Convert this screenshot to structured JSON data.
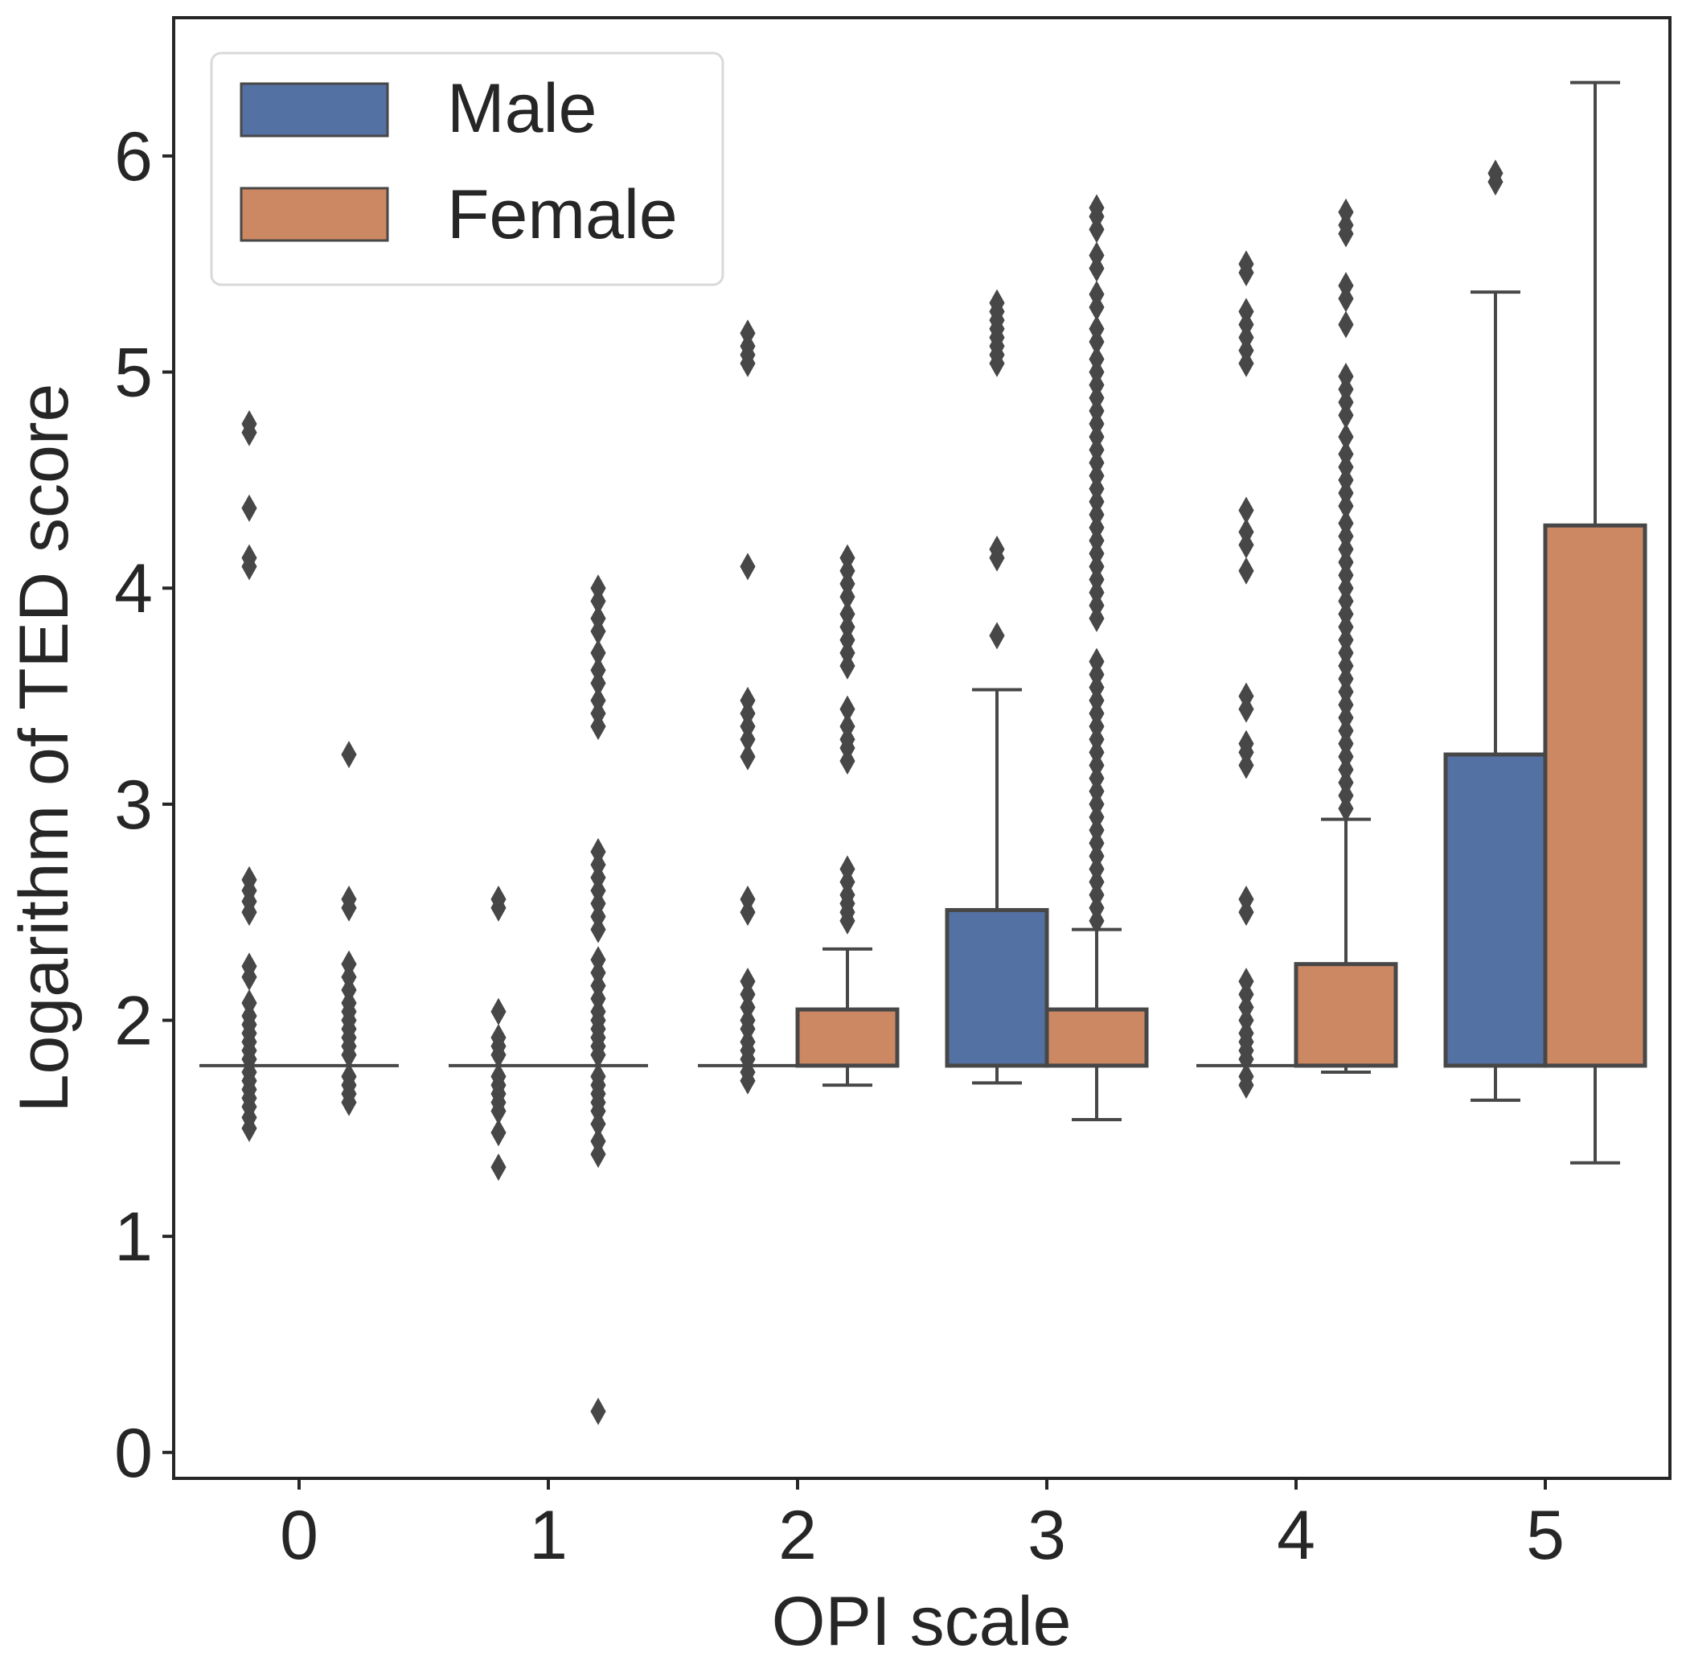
{
  "chart_data": {
    "type": "boxplot",
    "title": "",
    "xlabel": "OPI scale",
    "ylabel": "Logarithm of TED score",
    "categories": [
      "0",
      "1",
      "2",
      "3",
      "4",
      "5"
    ],
    "ylim": [
      -0.12,
      6.64
    ],
    "yticks": [
      "0",
      "1",
      "2",
      "3",
      "4",
      "5",
      "6"
    ],
    "grid": false,
    "legend_position": "top-left",
    "colors": {
      "Male": "#5471a3",
      "Female": "#cc8862",
      "outline": "#474747"
    },
    "series": [
      {
        "name": "Male",
        "boxes": [
          {
            "category": "0",
            "whislo": 1.79,
            "q1": 1.79,
            "median": 1.79,
            "q3": 1.79,
            "whishi": 1.79,
            "fliers": [
              1.5,
              1.55,
              1.6,
              1.64,
              1.68,
              1.72,
              1.76,
              1.82,
              1.86,
              1.9,
              1.94,
              1.98,
              2.02,
              2.08,
              2.2,
              2.25,
              2.5,
              2.55,
              2.6,
              2.65,
              4.1,
              4.14,
              4.37,
              4.72,
              4.76
            ]
          },
          {
            "category": "1",
            "whislo": 1.79,
            "q1": 1.79,
            "median": 1.79,
            "q3": 1.79,
            "whishi": 1.79,
            "fliers": [
              1.32,
              1.48,
              1.58,
              1.62,
              1.66,
              1.7,
              1.74,
              1.84,
              1.88,
              1.92,
              2.04,
              2.52,
              2.56
            ]
          },
          {
            "category": "2",
            "whislo": 1.79,
            "q1": 1.79,
            "median": 1.79,
            "q3": 1.79,
            "whishi": 1.79,
            "fliers": [
              1.72,
              1.76,
              1.82,
              1.86,
              1.9,
              1.96,
              2.0,
              2.06,
              2.12,
              2.18,
              2.5,
              2.56,
              3.22,
              3.3,
              3.36,
              3.42,
              3.48,
              4.1,
              5.04,
              5.08,
              5.12,
              5.18
            ]
          },
          {
            "category": "3",
            "whislo": 1.71,
            "q1": 1.79,
            "median": 1.79,
            "q3": 2.51,
            "whishi": 3.53,
            "fliers": [
              3.78,
              4.14,
              4.18,
              5.04,
              5.08,
              5.12,
              5.16,
              5.2,
              5.24,
              5.28,
              5.32
            ]
          },
          {
            "category": "4",
            "whislo": 1.79,
            "q1": 1.79,
            "median": 1.79,
            "q3": 1.79,
            "whishi": 1.79,
            "fliers": [
              1.7,
              1.74,
              1.82,
              1.86,
              1.9,
              1.94,
              2.0,
              2.06,
              2.12,
              2.18,
              2.5,
              2.56,
              3.18,
              3.24,
              3.28,
              3.44,
              3.5,
              4.08,
              4.2,
              4.26,
              4.36,
              5.04,
              5.1,
              5.16,
              5.22,
              5.28,
              5.46,
              5.5
            ]
          },
          {
            "category": "5",
            "whislo": 1.63,
            "q1": 1.79,
            "median": 1.79,
            "q3": 3.23,
            "whishi": 5.37,
            "fliers": [
              5.88,
              5.92
            ]
          }
        ]
      },
      {
        "name": "Female",
        "boxes": [
          {
            "category": "0",
            "whislo": 1.79,
            "q1": 1.79,
            "median": 1.79,
            "q3": 1.79,
            "whishi": 1.79,
            "fliers": [
              1.62,
              1.66,
              1.7,
              1.74,
              1.84,
              1.88,
              1.92,
              1.96,
              2.0,
              2.04,
              2.08,
              2.14,
              2.2,
              2.26,
              2.52,
              2.56,
              3.23
            ]
          },
          {
            "category": "1",
            "whislo": 1.79,
            "q1": 1.79,
            "median": 1.79,
            "q3": 1.79,
            "whishi": 1.79,
            "fliers": [
              0.19,
              1.38,
              1.44,
              1.52,
              1.58,
              1.62,
              1.66,
              1.7,
              1.74,
              1.84,
              1.88,
              1.92,
              1.96,
              2.0,
              2.04,
              2.1,
              2.16,
              2.22,
              2.28,
              2.42,
              2.48,
              2.54,
              2.6,
              2.66,
              2.72,
              2.78,
              3.36,
              3.42,
              3.48,
              3.56,
              3.62,
              3.7,
              3.8,
              3.86,
              3.94,
              4.0
            ]
          },
          {
            "category": "2",
            "whislo": 1.7,
            "q1": 1.79,
            "median": 1.79,
            "q3": 2.05,
            "whishi": 2.33,
            "fliers": [
              2.46,
              2.5,
              2.54,
              2.58,
              2.64,
              2.7,
              3.2,
              3.26,
              3.3,
              3.36,
              3.44,
              3.64,
              3.7,
              3.76,
              3.82,
              3.88,
              3.96,
              4.02,
              4.08,
              4.14
            ]
          },
          {
            "category": "3",
            "whislo": 1.54,
            "q1": 1.79,
            "median": 1.79,
            "q3": 2.05,
            "whishi": 2.42,
            "fliers": [
              2.46,
              2.52,
              2.58,
              2.64,
              2.7,
              2.76,
              2.82,
              2.88,
              2.94,
              3.0,
              3.06,
              3.12,
              3.18,
              3.24,
              3.3,
              3.36,
              3.42,
              3.48,
              3.54,
              3.6,
              3.66,
              3.86,
              3.92,
              3.98,
              4.04,
              4.1,
              4.16,
              4.22,
              4.28,
              4.34,
              4.4,
              4.46,
              4.52,
              4.58,
              4.64,
              4.7,
              4.76,
              4.82,
              4.88,
              4.94,
              5.0,
              5.06,
              5.14,
              5.2,
              5.3,
              5.36,
              5.48,
              5.54,
              5.66,
              5.72,
              5.76
            ]
          },
          {
            "category": "4",
            "whislo": 1.76,
            "q1": 1.79,
            "median": 1.79,
            "q3": 2.26,
            "whishi": 2.93,
            "fliers": [
              2.98,
              3.04,
              3.1,
              3.16,
              3.22,
              3.28,
              3.34,
              3.4,
              3.46,
              3.52,
              3.58,
              3.64,
              3.7,
              3.76,
              3.82,
              3.88,
              3.94,
              4.0,
              4.06,
              4.12,
              4.18,
              4.24,
              4.3,
              4.38,
              4.44,
              4.5,
              4.56,
              4.62,
              4.7,
              4.8,
              4.86,
              4.92,
              4.98,
              5.22,
              5.34,
              5.4,
              5.64,
              5.68,
              5.74
            ]
          },
          {
            "category": "5",
            "whislo": 1.34,
            "q1": 1.79,
            "median": 1.79,
            "q3": 4.29,
            "whishi": 6.34,
            "fliers": []
          }
        ]
      }
    ]
  }
}
